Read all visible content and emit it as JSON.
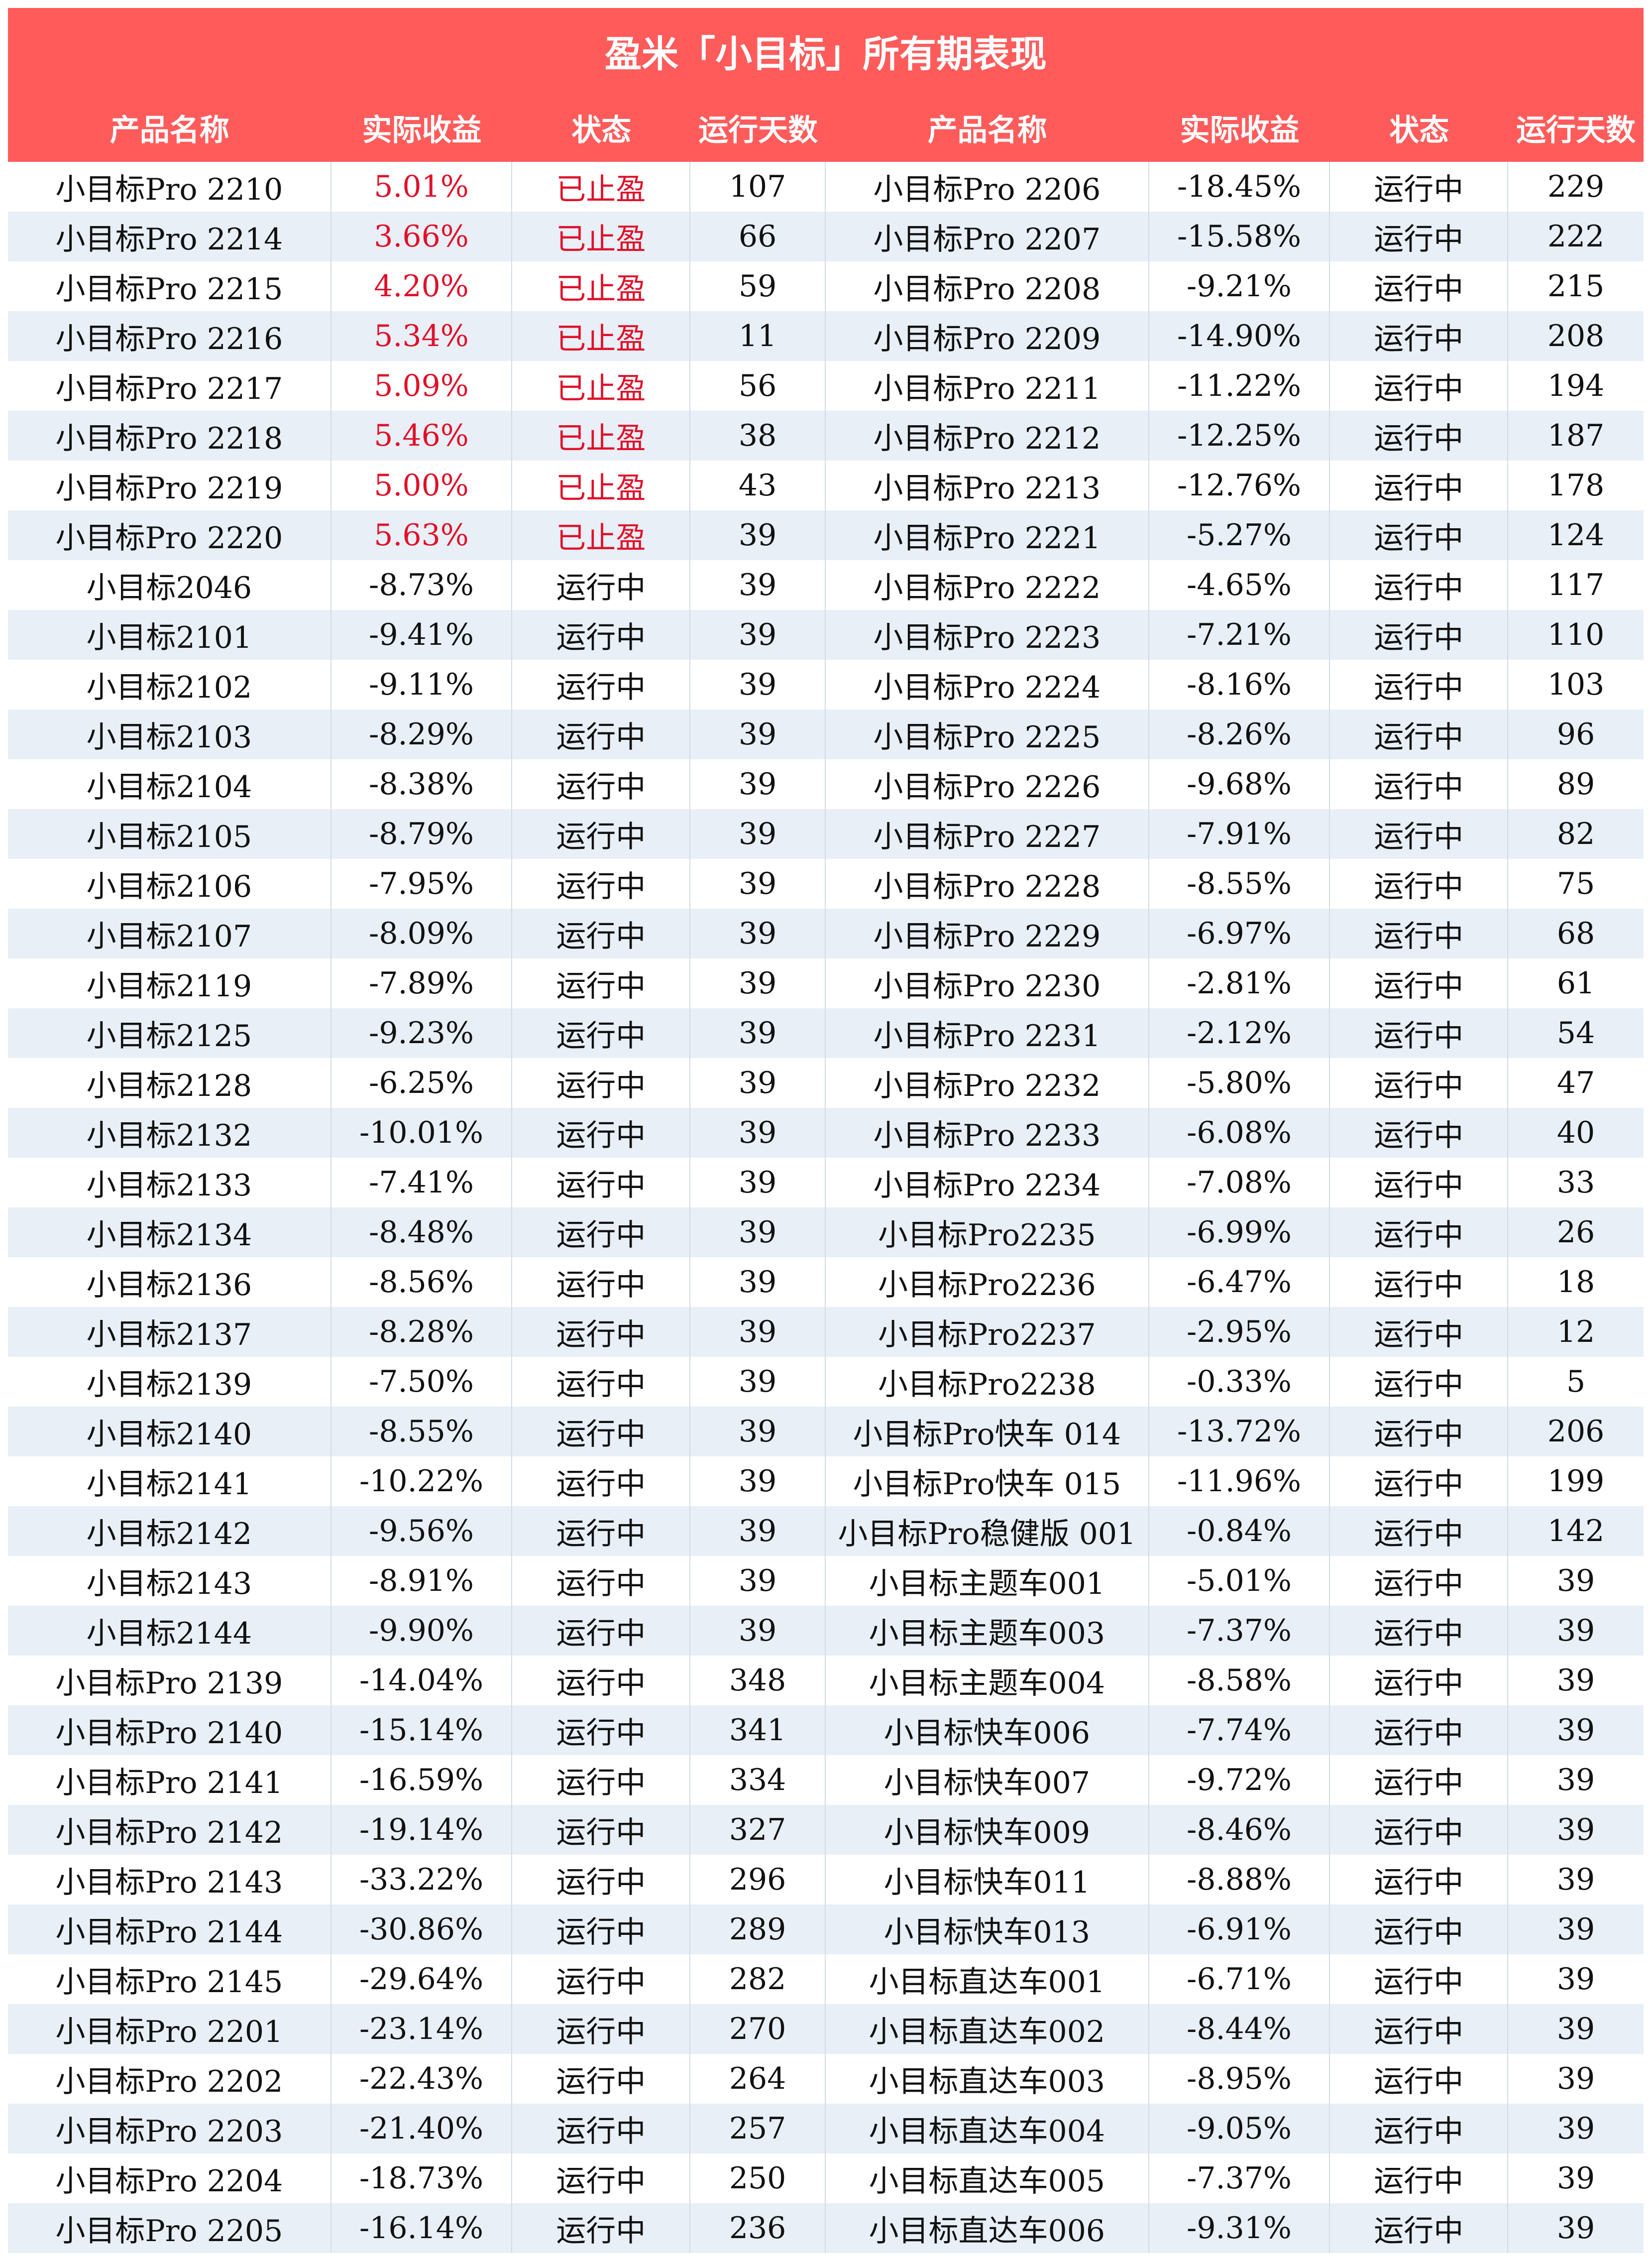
{
  "title": "盈米「小目标」所有期表现",
  "columns": [
    "产品名称",
    "实际收益",
    "状态",
    "运行天数",
    "产品名称",
    "实际收益",
    "状态",
    "运行天数"
  ],
  "colors": {
    "header_bg": "#ff5b5b",
    "header_text": "#ffffff",
    "gain_text": "#e0102a",
    "stripe_bg": "#e8eff6"
  },
  "rows": [
    {
      "left": [
        "小目标Pro 2210",
        "5.01%",
        "已止盈",
        "107"
      ],
      "right": [
        "小目标Pro 2206",
        "-18.45%",
        "运行中",
        "229"
      ]
    },
    {
      "left": [
        "小目标Pro 2214",
        "3.66%",
        "已止盈",
        "66"
      ],
      "right": [
        "小目标Pro 2207",
        "-15.58%",
        "运行中",
        "222"
      ]
    },
    {
      "left": [
        "小目标Pro 2215",
        "4.20%",
        "已止盈",
        "59"
      ],
      "right": [
        "小目标Pro 2208",
        "-9.21%",
        "运行中",
        "215"
      ]
    },
    {
      "left": [
        "小目标Pro 2216",
        "5.34%",
        "已止盈",
        "11"
      ],
      "right": [
        "小目标Pro 2209",
        "-14.90%",
        "运行中",
        "208"
      ]
    },
    {
      "left": [
        "小目标Pro 2217",
        "5.09%",
        "已止盈",
        "56"
      ],
      "right": [
        "小目标Pro 2211",
        "-11.22%",
        "运行中",
        "194"
      ]
    },
    {
      "left": [
        "小目标Pro 2218",
        "5.46%",
        "已止盈",
        "38"
      ],
      "right": [
        "小目标Pro 2212",
        "-12.25%",
        "运行中",
        "187"
      ]
    },
    {
      "left": [
        "小目标Pro 2219",
        "5.00%",
        "已止盈",
        "43"
      ],
      "right": [
        "小目标Pro 2213",
        "-12.76%",
        "运行中",
        "178"
      ]
    },
    {
      "left": [
        "小目标Pro 2220",
        "5.63%",
        "已止盈",
        "39"
      ],
      "right": [
        "小目标Pro 2221",
        "-5.27%",
        "运行中",
        "124"
      ]
    },
    {
      "left": [
        "小目标2046",
        "-8.73%",
        "运行中",
        "39"
      ],
      "right": [
        "小目标Pro 2222",
        "-4.65%",
        "运行中",
        "117"
      ]
    },
    {
      "left": [
        "小目标2101",
        "-9.41%",
        "运行中",
        "39"
      ],
      "right": [
        "小目标Pro 2223",
        "-7.21%",
        "运行中",
        "110"
      ]
    },
    {
      "left": [
        "小目标2102",
        "-9.11%",
        "运行中",
        "39"
      ],
      "right": [
        "小目标Pro 2224",
        "-8.16%",
        "运行中",
        "103"
      ]
    },
    {
      "left": [
        "小目标2103",
        "-8.29%",
        "运行中",
        "39"
      ],
      "right": [
        "小目标Pro 2225",
        "-8.26%",
        "运行中",
        "96"
      ]
    },
    {
      "left": [
        "小目标2104",
        "-8.38%",
        "运行中",
        "39"
      ],
      "right": [
        "小目标Pro 2226",
        "-9.68%",
        "运行中",
        "89"
      ]
    },
    {
      "left": [
        "小目标2105",
        "-8.79%",
        "运行中",
        "39"
      ],
      "right": [
        "小目标Pro 2227",
        "-7.91%",
        "运行中",
        "82"
      ]
    },
    {
      "left": [
        "小目标2106",
        "-7.95%",
        "运行中",
        "39"
      ],
      "right": [
        "小目标Pro 2228",
        "-8.55%",
        "运行中",
        "75"
      ]
    },
    {
      "left": [
        "小目标2107",
        "-8.09%",
        "运行中",
        "39"
      ],
      "right": [
        "小目标Pro 2229",
        "-6.97%",
        "运行中",
        "68"
      ]
    },
    {
      "left": [
        "小目标2119",
        "-7.89%",
        "运行中",
        "39"
      ],
      "right": [
        "小目标Pro 2230",
        "-2.81%",
        "运行中",
        "61"
      ]
    },
    {
      "left": [
        "小目标2125",
        "-9.23%",
        "运行中",
        "39"
      ],
      "right": [
        "小目标Pro 2231",
        "-2.12%",
        "运行中",
        "54"
      ]
    },
    {
      "left": [
        "小目标2128",
        "-6.25%",
        "运行中",
        "39"
      ],
      "right": [
        "小目标Pro 2232",
        "-5.80%",
        "运行中",
        "47"
      ]
    },
    {
      "left": [
        "小目标2132",
        "-10.01%",
        "运行中",
        "39"
      ],
      "right": [
        "小目标Pro 2233",
        "-6.08%",
        "运行中",
        "40"
      ]
    },
    {
      "left": [
        "小目标2133",
        "-7.41%",
        "运行中",
        "39"
      ],
      "right": [
        "小目标Pro 2234",
        "-7.08%",
        "运行中",
        "33"
      ]
    },
    {
      "left": [
        "小目标2134",
        "-8.48%",
        "运行中",
        "39"
      ],
      "right": [
        "小目标Pro2235",
        "-6.99%",
        "运行中",
        "26"
      ]
    },
    {
      "left": [
        "小目标2136",
        "-8.56%",
        "运行中",
        "39"
      ],
      "right": [
        "小目标Pro2236",
        "-6.47%",
        "运行中",
        "18"
      ]
    },
    {
      "left": [
        "小目标2137",
        "-8.28%",
        "运行中",
        "39"
      ],
      "right": [
        "小目标Pro2237",
        "-2.95%",
        "运行中",
        "12"
      ]
    },
    {
      "left": [
        "小目标2139",
        "-7.50%",
        "运行中",
        "39"
      ],
      "right": [
        "小目标Pro2238",
        "-0.33%",
        "运行中",
        "5"
      ]
    },
    {
      "left": [
        "小目标2140",
        "-8.55%",
        "运行中",
        "39"
      ],
      "right": [
        "小目标Pro快车 014",
        "-13.72%",
        "运行中",
        "206"
      ]
    },
    {
      "left": [
        "小目标2141",
        "-10.22%",
        "运行中",
        "39"
      ],
      "right": [
        "小目标Pro快车 015",
        "-11.96%",
        "运行中",
        "199"
      ]
    },
    {
      "left": [
        "小目标2142",
        "-9.56%",
        "运行中",
        "39"
      ],
      "right": [
        "小目标Pro稳健版 001",
        "-0.84%",
        "运行中",
        "142"
      ]
    },
    {
      "left": [
        "小目标2143",
        "-8.91%",
        "运行中",
        "39"
      ],
      "right": [
        "小目标主题车001",
        "-5.01%",
        "运行中",
        "39"
      ]
    },
    {
      "left": [
        "小目标2144",
        "-9.90%",
        "运行中",
        "39"
      ],
      "right": [
        "小目标主题车003",
        "-7.37%",
        "运行中",
        "39"
      ]
    },
    {
      "left": [
        "小目标Pro 2139",
        "-14.04%",
        "运行中",
        "348"
      ],
      "right": [
        "小目标主题车004",
        "-8.58%",
        "运行中",
        "39"
      ]
    },
    {
      "left": [
        "小目标Pro 2140",
        "-15.14%",
        "运行中",
        "341"
      ],
      "right": [
        "小目标快车006",
        "-7.74%",
        "运行中",
        "39"
      ]
    },
    {
      "left": [
        "小目标Pro 2141",
        "-16.59%",
        "运行中",
        "334"
      ],
      "right": [
        "小目标快车007",
        "-9.72%",
        "运行中",
        "39"
      ]
    },
    {
      "left": [
        "小目标Pro 2142",
        "-19.14%",
        "运行中",
        "327"
      ],
      "right": [
        "小目标快车009",
        "-8.46%",
        "运行中",
        "39"
      ]
    },
    {
      "left": [
        "小目标Pro 2143",
        "-33.22%",
        "运行中",
        "296"
      ],
      "right": [
        "小目标快车011",
        "-8.88%",
        "运行中",
        "39"
      ]
    },
    {
      "left": [
        "小目标Pro 2144",
        "-30.86%",
        "运行中",
        "289"
      ],
      "right": [
        "小目标快车013",
        "-6.91%",
        "运行中",
        "39"
      ]
    },
    {
      "left": [
        "小目标Pro 2145",
        "-29.64%",
        "运行中",
        "282"
      ],
      "right": [
        "小目标直达车001",
        "-6.71%",
        "运行中",
        "39"
      ]
    },
    {
      "left": [
        "小目标Pro 2201",
        "-23.14%",
        "运行中",
        "270"
      ],
      "right": [
        "小目标直达车002",
        "-8.44%",
        "运行中",
        "39"
      ]
    },
    {
      "left": [
        "小目标Pro 2202",
        "-22.43%",
        "运行中",
        "264"
      ],
      "right": [
        "小目标直达车003",
        "-8.95%",
        "运行中",
        "39"
      ]
    },
    {
      "left": [
        "小目标Pro 2203",
        "-21.40%",
        "运行中",
        "257"
      ],
      "right": [
        "小目标直达车004",
        "-9.05%",
        "运行中",
        "39"
      ]
    },
    {
      "left": [
        "小目标Pro 2204",
        "-18.73%",
        "运行中",
        "250"
      ],
      "right": [
        "小目标直达车005",
        "-7.37%",
        "运行中",
        "39"
      ]
    },
    {
      "left": [
        "小目标Pro 2205",
        "-16.14%",
        "运行中",
        "236"
      ],
      "right": [
        "小目标直达车006",
        "-9.31%",
        "运行中",
        "39"
      ]
    }
  ]
}
